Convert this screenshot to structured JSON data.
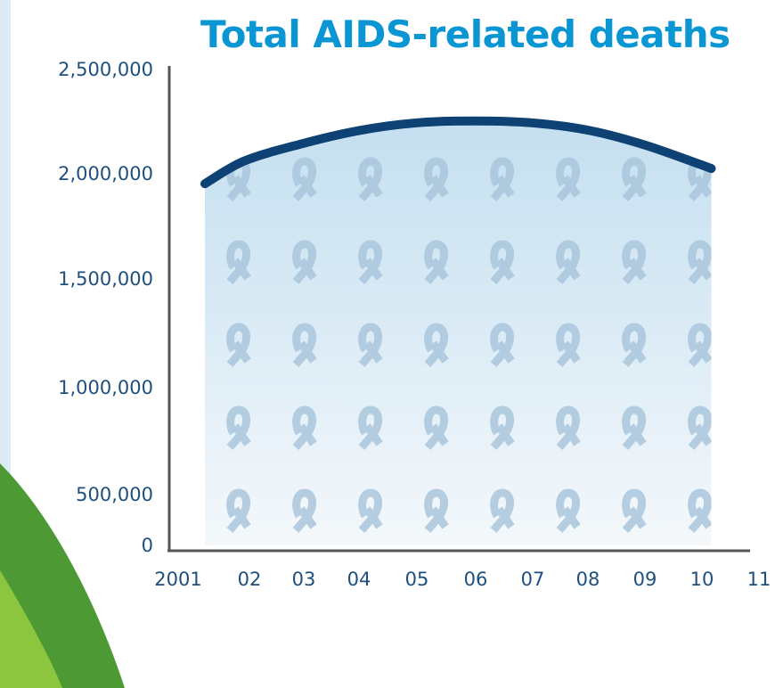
{
  "chart_data": {
    "type": "area",
    "title": "Total AIDS-related deaths",
    "xlabel": "",
    "ylabel": "",
    "x": [
      2001,
      2002,
      2003,
      2004,
      2005,
      2006,
      2007,
      2008,
      2009,
      2010
    ],
    "x_tick_values": [
      2001,
      2002,
      2003,
      2004,
      2005,
      2006,
      2007,
      2008,
      2009,
      2010,
      2011
    ],
    "x_tick_labels": [
      "2001",
      "02",
      "03",
      "04",
      "05",
      "06",
      "07",
      "08",
      "09",
      "10",
      "11"
    ],
    "values": [
      1900000,
      2020000,
      2110000,
      2180000,
      2220000,
      2230000,
      2220000,
      2180000,
      2100000,
      1980000
    ],
    "y_tick_values": [
      0,
      500000,
      1000000,
      1500000,
      2000000,
      2500000
    ],
    "y_tick_labels": [
      "0",
      "500,000",
      "1,000,000",
      "1,500,000",
      "2,000,000",
      "2,500,000"
    ],
    "xlim": [
      2001,
      2011
    ],
    "ylim": [
      0,
      2500000
    ],
    "grid": false,
    "legend": "none",
    "colors": {
      "title": "#0a96d3",
      "line": "#0e4174",
      "axis": "#555555",
      "tick_text": "#1f4f7d",
      "fill_top": "#c4dff0",
      "fill_bottom": "#f4f8fb",
      "ribbon": "#a9c6dc",
      "green_dark": "#4d9a35",
      "green_light": "#8cc63f"
    },
    "fill_pattern_icon": "awareness-ribbon-icon"
  }
}
